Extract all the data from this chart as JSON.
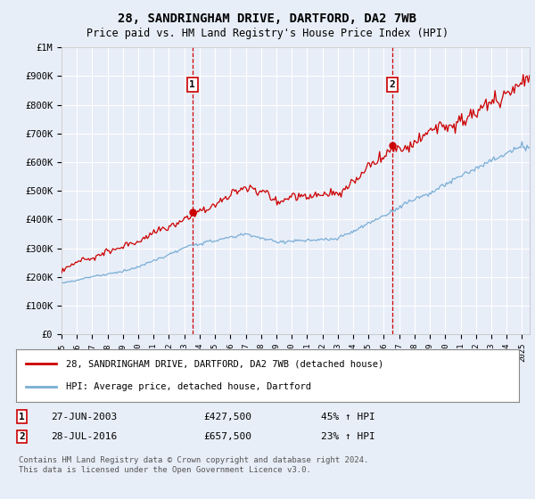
{
  "title": "28, SANDRINGHAM DRIVE, DARTFORD, DA2 7WB",
  "subtitle": "Price paid vs. HM Land Registry's House Price Index (HPI)",
  "bg_color": "#e8eef8",
  "plot_bg_color": "#e8eef8",
  "grid_color": "#ffffff",
  "red_color": "#cc0000",
  "blue_color": "#7aaed6",
  "ylabel_ticks": [
    "£0",
    "£100K",
    "£200K",
    "£300K",
    "£400K",
    "£500K",
    "£600K",
    "£700K",
    "£800K",
    "£900K",
    "£1M"
  ],
  "ylabel_values": [
    0,
    100000,
    200000,
    300000,
    400000,
    500000,
    600000,
    700000,
    800000,
    900000,
    1000000
  ],
  "xticklabels": [
    "1995",
    "1996",
    "1997",
    "1998",
    "1999",
    "2000",
    "2001",
    "2002",
    "2003",
    "2004",
    "2005",
    "2006",
    "2007",
    "2008",
    "2009",
    "2010",
    "2011",
    "2012",
    "2013",
    "2014",
    "2015",
    "2016",
    "2017",
    "2018",
    "2019",
    "2020",
    "2021",
    "2022",
    "2023",
    "2024",
    "2025"
  ],
  "legend_label_red": "28, SANDRINGHAM DRIVE, DARTFORD, DA2 7WB (detached house)",
  "legend_label_blue": "HPI: Average price, detached house, Dartford",
  "annotation1_label": "1",
  "annotation1_date": "27-JUN-2003",
  "annotation1_price": "£427,500",
  "annotation1_hpi": "45% ↑ HPI",
  "annotation2_label": "2",
  "annotation2_date": "28-JUL-2016",
  "annotation2_price": "£657,500",
  "annotation2_hpi": "23% ↑ HPI",
  "footnote": "Contains HM Land Registry data © Crown copyright and database right 2024.\nThis data is licensed under the Open Government Licence v3.0."
}
